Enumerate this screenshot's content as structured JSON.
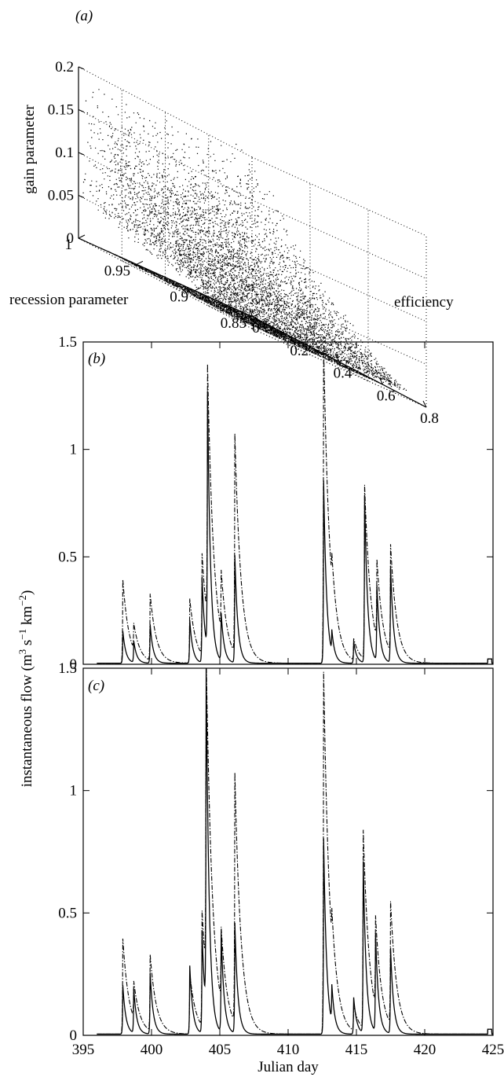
{
  "chart_data": [
    {
      "type": "scatter",
      "panel_label": "(a)",
      "dimensions": "3d",
      "axes": {
        "efficiency": {
          "label": "efficiency",
          "ticks": [
            "0",
            "0.2",
            "0.4",
            "0.6",
            "0.8"
          ],
          "range": [
            0,
            0.8
          ]
        },
        "recession": {
          "label": "recession parameter",
          "ticks": [
            "0.85",
            "0.9",
            "0.95",
            "1"
          ],
          "range": [
            0.85,
            1
          ]
        },
        "gain": {
          "label": "gain parameter",
          "ticks": [
            "0",
            "0.05",
            "0.1",
            "0.15",
            "0.2"
          ],
          "range": [
            0,
            0.2
          ]
        }
      },
      "grid": true,
      "point_color": "#000000",
      "sample_points": [
        {
          "efficiency": 0.0,
          "recession": 1.0,
          "gain": 0.19
        },
        {
          "efficiency": 0.1,
          "recession": 0.98,
          "gain": 0.16
        },
        {
          "efficiency": 0.2,
          "recession": 0.96,
          "gain": 0.12
        },
        {
          "efficiency": 0.3,
          "recession": 0.95,
          "gain": 0.09
        },
        {
          "efficiency": 0.45,
          "recession": 0.93,
          "gain": 0.07
        },
        {
          "efficiency": 0.6,
          "recession": 0.92,
          "gain": 0.05
        },
        {
          "efficiency": 0.7,
          "recession": 0.91,
          "gain": 0.03
        },
        {
          "efficiency": 0.2,
          "recession": 0.9,
          "gain": 0.0
        },
        {
          "efficiency": 0.4,
          "recession": 0.88,
          "gain": 0.0
        }
      ]
    },
    {
      "type": "line",
      "panel_label": "(b)",
      "xlim": [
        395,
        425
      ],
      "ylim": [
        0,
        1.5
      ],
      "yticks": [
        "0",
        "0.5",
        "1",
        "1.5"
      ],
      "xticks": [],
      "series": [
        {
          "style": "solid",
          "peaks": [
            [
              397.9,
              0.15
            ],
            [
              398.7,
              0.1
            ],
            [
              399.9,
              0.18
            ],
            [
              402.8,
              0.2
            ],
            [
              403.7,
              0.4
            ],
            [
              404.1,
              1.2
            ],
            [
              405.1,
              0.22
            ],
            [
              406.1,
              0.5
            ],
            [
              412.6,
              0.85
            ],
            [
              413.2,
              0.1
            ],
            [
              414.8,
              0.1
            ],
            [
              415.6,
              0.78
            ],
            [
              416.5,
              0.35
            ],
            [
              417.5,
              0.45
            ]
          ]
        },
        {
          "style": "dashdot",
          "peaks": [
            [
              397.9,
              0.39
            ],
            [
              398.7,
              0.12
            ],
            [
              399.9,
              0.31
            ],
            [
              402.8,
              0.3
            ],
            [
              403.7,
              0.47
            ],
            [
              404.1,
              1.18
            ],
            [
              405.1,
              0.28
            ],
            [
              406.1,
              1.02
            ],
            [
              412.6,
              1.48
            ],
            [
              413.2,
              0.12
            ],
            [
              414.8,
              0.1
            ],
            [
              415.6,
              0.81
            ],
            [
              416.5,
              0.37
            ],
            [
              417.5,
              0.5
            ]
          ]
        }
      ]
    },
    {
      "type": "line",
      "panel_label": "(c)",
      "xlim": [
        395,
        425
      ],
      "ylim": [
        0,
        1.5
      ],
      "xlabel": "Julian day",
      "ylabel": "instantaneous flow (m3 s−1 km−2)",
      "ylabel_parts": {
        "main": "instantaneous flow (m",
        "sup1": "3",
        "mid1": " s",
        "sup2": "−1",
        "mid2": " km",
        "sup3": "−2",
        "end": ")"
      },
      "xticks": [
        "395",
        "400",
        "405",
        "410",
        "415",
        "420",
        "425"
      ],
      "yticks": [
        "0",
        "0.5",
        "1",
        "1.5"
      ],
      "series": [
        {
          "style": "solid",
          "peaks": [
            [
              397.9,
              0.2
            ],
            [
              398.7,
              0.18
            ],
            [
              399.9,
              0.25
            ],
            [
              402.8,
              0.28
            ],
            [
              403.7,
              0.42
            ],
            [
              404.0,
              1.4
            ],
            [
              405.1,
              0.4
            ],
            [
              406.1,
              0.45
            ],
            [
              412.6,
              0.8
            ],
            [
              413.2,
              0.15
            ],
            [
              414.8,
              0.15
            ],
            [
              415.5,
              0.7
            ],
            [
              416.4,
              0.4
            ],
            [
              417.5,
              0.35
            ]
          ]
        },
        {
          "style": "dashdot",
          "peaks": [
            [
              397.9,
              0.39
            ],
            [
              398.7,
              0.15
            ],
            [
              399.9,
              0.31
            ],
            [
              402.8,
              0.25
            ],
            [
              403.7,
              0.47
            ],
            [
              404.0,
              1.3
            ],
            [
              405.1,
              0.3
            ],
            [
              406.1,
              1.02
            ],
            [
              412.6,
              1.48
            ],
            [
              413.2,
              0.12
            ],
            [
              414.8,
              0.1
            ],
            [
              415.5,
              0.81
            ],
            [
              416.4,
              0.37
            ],
            [
              417.5,
              0.5
            ]
          ]
        }
      ]
    }
  ]
}
